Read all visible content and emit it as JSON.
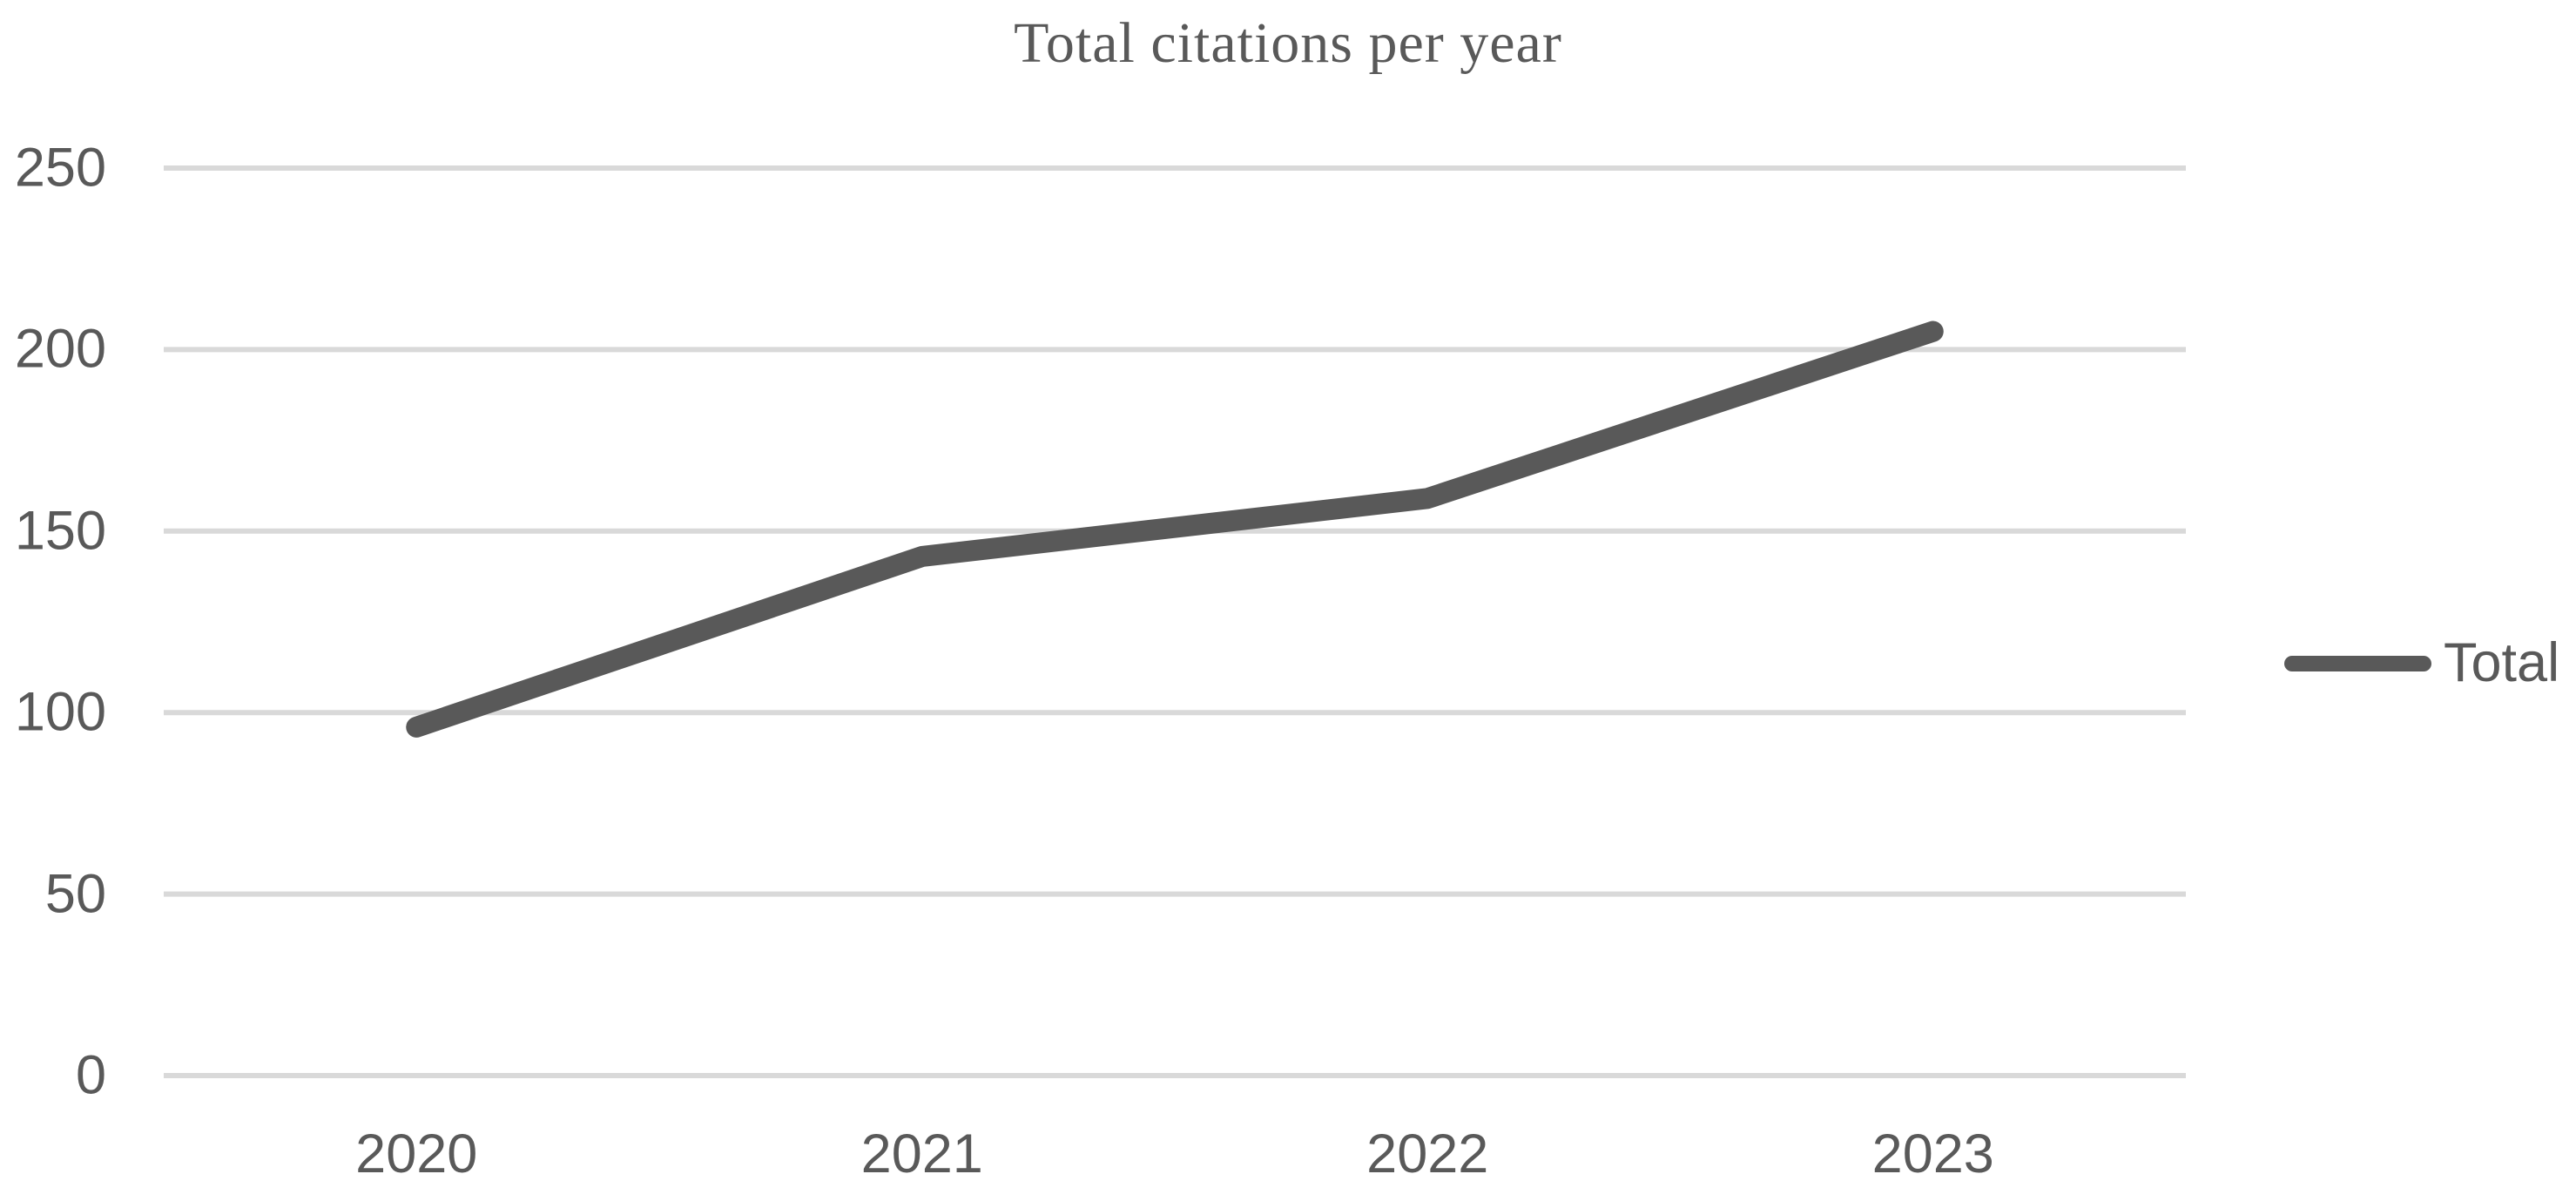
{
  "chart_data": {
    "type": "line",
    "title": "Total citations per year",
    "categories": [
      "2020",
      "2021",
      "2022",
      "2023"
    ],
    "series": [
      {
        "name": "Total",
        "values": [
          96,
          143,
          159,
          205
        ]
      }
    ],
    "xlabel": "",
    "ylabel": "",
    "ylim": [
      0,
      250
    ],
    "yticks": [
      0,
      50,
      100,
      150,
      200,
      250
    ],
    "grid": "horizontal",
    "legend_position": "right",
    "colors": {
      "series": "#595959",
      "gridline": "#d9d9d9",
      "text": "#595959",
      "background": "#ffffff"
    }
  }
}
